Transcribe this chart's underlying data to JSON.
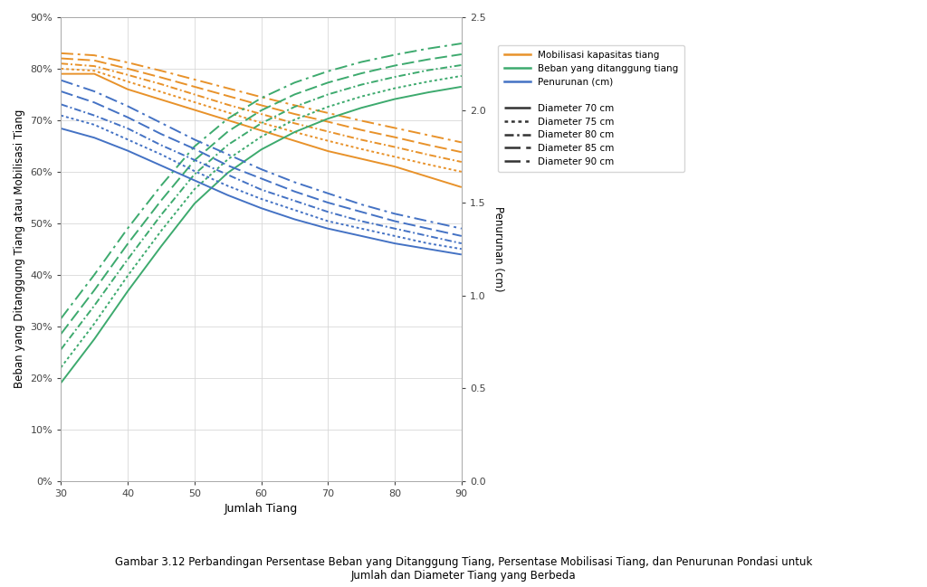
{
  "x": [
    30,
    35,
    40,
    45,
    50,
    55,
    60,
    65,
    70,
    75,
    80,
    85,
    90
  ],
  "title_bold": "Gambar 3.12",
  "title_normal": " Perbandingan Persentase Beban yang Ditanggung Tiang, Persentase Mobilisasi Tiang, dan Penurunan Pondasi untuk",
  "title_line2": "Jumlah dan Diameter Tiang yang Berbeda",
  "xlabel": "Jumlah Tiang",
  "ylabel_left": "Beban yang Ditanggung Tiang atau Mobilisasi Tiang",
  "ylabel_right": "Penurunan (cm)",
  "ylim_left": [
    0.0,
    0.9
  ],
  "ylim_right": [
    0.0,
    2.5
  ],
  "yticks_left": [
    0.0,
    0.1,
    0.2,
    0.3,
    0.4,
    0.5,
    0.6,
    0.7,
    0.8,
    0.9
  ],
  "ytick_labels_left": [
    "0%",
    "10%",
    "20%",
    "30%",
    "40%",
    "50%",
    "60%",
    "70%",
    "80%",
    "90%"
  ],
  "yticks_right": [
    0.0,
    0.5,
    1.0,
    1.5,
    2.0,
    2.5
  ],
  "xlim": [
    30,
    90
  ],
  "xticks": [
    30,
    40,
    50,
    60,
    70,
    80,
    90
  ],
  "colors": {
    "orange": "#E8922A",
    "green": "#3DAA6E",
    "blue": "#4472C4"
  },
  "legend_color_labels": [
    "Mobilisasi kapasitas tiang",
    "Beban yang ditanggung tiang",
    "Penurunan (cm)"
  ],
  "legend_style_labels": [
    "Diameter 70 cm",
    "Diameter 75 cm",
    "Diameter 80 cm",
    "Diameter 85 cm",
    "Diameter 90 cm"
  ],
  "mobilisasi_70": [
    0.79,
    0.79,
    0.76,
    0.74,
    0.72,
    0.7,
    0.68,
    0.66,
    0.64,
    0.625,
    0.61,
    0.59,
    0.57
  ],
  "mobilisasi_75": [
    0.8,
    0.796,
    0.775,
    0.755,
    0.735,
    0.715,
    0.695,
    0.677,
    0.66,
    0.644,
    0.629,
    0.614,
    0.6
  ],
  "mobilisasi_80": [
    0.81,
    0.805,
    0.788,
    0.77,
    0.75,
    0.73,
    0.712,
    0.694,
    0.678,
    0.662,
    0.648,
    0.633,
    0.619
  ],
  "mobilisasi_85": [
    0.82,
    0.816,
    0.8,
    0.783,
    0.765,
    0.747,
    0.729,
    0.712,
    0.697,
    0.681,
    0.667,
    0.652,
    0.638
  ],
  "mobilisasi_90": [
    0.83,
    0.826,
    0.812,
    0.796,
    0.779,
    0.762,
    0.745,
    0.729,
    0.714,
    0.699,
    0.685,
    0.671,
    0.657
  ],
  "beban_70": [
    0.19,
    0.275,
    0.368,
    0.455,
    0.538,
    0.598,
    0.643,
    0.677,
    0.703,
    0.724,
    0.741,
    0.754,
    0.765
  ],
  "beban_75": [
    0.22,
    0.305,
    0.398,
    0.485,
    0.566,
    0.624,
    0.668,
    0.701,
    0.726,
    0.746,
    0.762,
    0.775,
    0.786
  ],
  "beban_80": [
    0.255,
    0.34,
    0.43,
    0.516,
    0.595,
    0.652,
    0.694,
    0.726,
    0.75,
    0.769,
    0.784,
    0.797,
    0.807
  ],
  "beban_85": [
    0.285,
    0.37,
    0.46,
    0.544,
    0.622,
    0.678,
    0.719,
    0.75,
    0.773,
    0.791,
    0.806,
    0.818,
    0.828
  ],
  "beban_90": [
    0.315,
    0.4,
    0.49,
    0.573,
    0.649,
    0.703,
    0.743,
    0.773,
    0.795,
    0.813,
    0.827,
    0.839,
    0.849
  ],
  "penurunan_70": [
    1.9,
    1.85,
    1.78,
    1.7,
    1.62,
    1.54,
    1.47,
    1.41,
    1.36,
    1.32,
    1.28,
    1.25,
    1.22
  ],
  "penurunan_75": [
    1.97,
    1.92,
    1.84,
    1.76,
    1.67,
    1.59,
    1.52,
    1.46,
    1.4,
    1.36,
    1.32,
    1.28,
    1.25
  ],
  "penurunan_80": [
    2.03,
    1.97,
    1.9,
    1.81,
    1.73,
    1.65,
    1.57,
    1.51,
    1.45,
    1.4,
    1.36,
    1.32,
    1.28
  ],
  "penurunan_85": [
    2.1,
    2.04,
    1.96,
    1.87,
    1.79,
    1.7,
    1.63,
    1.56,
    1.5,
    1.45,
    1.4,
    1.36,
    1.32
  ],
  "penurunan_90": [
    2.16,
    2.1,
    2.02,
    1.93,
    1.84,
    1.76,
    1.68,
    1.61,
    1.55,
    1.49,
    1.44,
    1.4,
    1.36
  ]
}
